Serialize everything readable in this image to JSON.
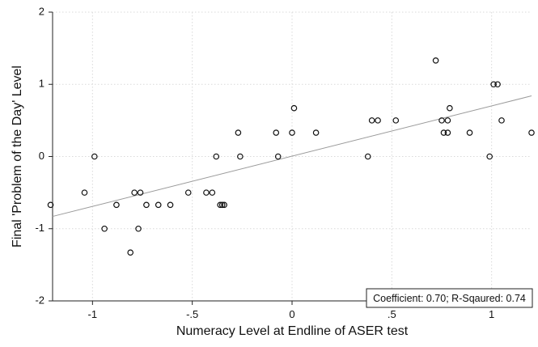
{
  "chart_data": {
    "type": "scatter",
    "xlabel": "Numeracy Level at Endline of ASER test",
    "ylabel": "Final 'Problem of the Day' Level",
    "xlim": [
      -1.2,
      1.2
    ],
    "ylim": [
      -2,
      2
    ],
    "x_ticks": [
      -1,
      -0.5,
      0,
      0.5,
      1
    ],
    "x_tick_labels": [
      "-1",
      "-.5",
      "0",
      ".5",
      "1"
    ],
    "y_ticks": [
      -2,
      -1,
      0,
      1,
      2
    ],
    "y_tick_labels": [
      "-2",
      "-1",
      "0",
      "1",
      "2"
    ],
    "grid": true,
    "annotation": "Coefficient: 0.70; R-Sqaured: 0.74",
    "annotation_position": "bottom-right",
    "fit_line": {
      "x": [
        -1.2,
        1.2
      ],
      "y": [
        -0.83,
        0.84
      ]
    },
    "x": [
      -1.21,
      -1.04,
      -0.99,
      -0.94,
      -0.88,
      -0.81,
      -0.79,
      -0.77,
      -0.76,
      -0.73,
      -0.67,
      -0.61,
      -0.52,
      -0.43,
      -0.4,
      -0.38,
      -0.36,
      -0.35,
      -0.34,
      -0.27,
      -0.26,
      -0.08,
      -0.07,
      0.0,
      0.01,
      0.12,
      0.38,
      0.4,
      0.43,
      0.52,
      0.72,
      0.75,
      0.76,
      0.78,
      0.78,
      0.79,
      0.89,
      0.99,
      1.01,
      1.03,
      1.05,
      1.2
    ],
    "y": [
      -0.67,
      -0.5,
      0.0,
      -1.0,
      -0.67,
      -1.33,
      -0.5,
      -1.0,
      -0.5,
      -0.67,
      -0.67,
      -0.67,
      -0.5,
      -0.5,
      -0.5,
      0.0,
      -0.67,
      -0.67,
      -0.67,
      0.33,
      0.0,
      0.33,
      0.0,
      0.33,
      0.67,
      0.33,
      0.0,
      0.5,
      0.5,
      0.5,
      1.33,
      0.5,
      0.33,
      0.33,
      0.5,
      0.67,
      0.33,
      0.0,
      1.0,
      1.0,
      0.5,
      0.33
    ]
  }
}
